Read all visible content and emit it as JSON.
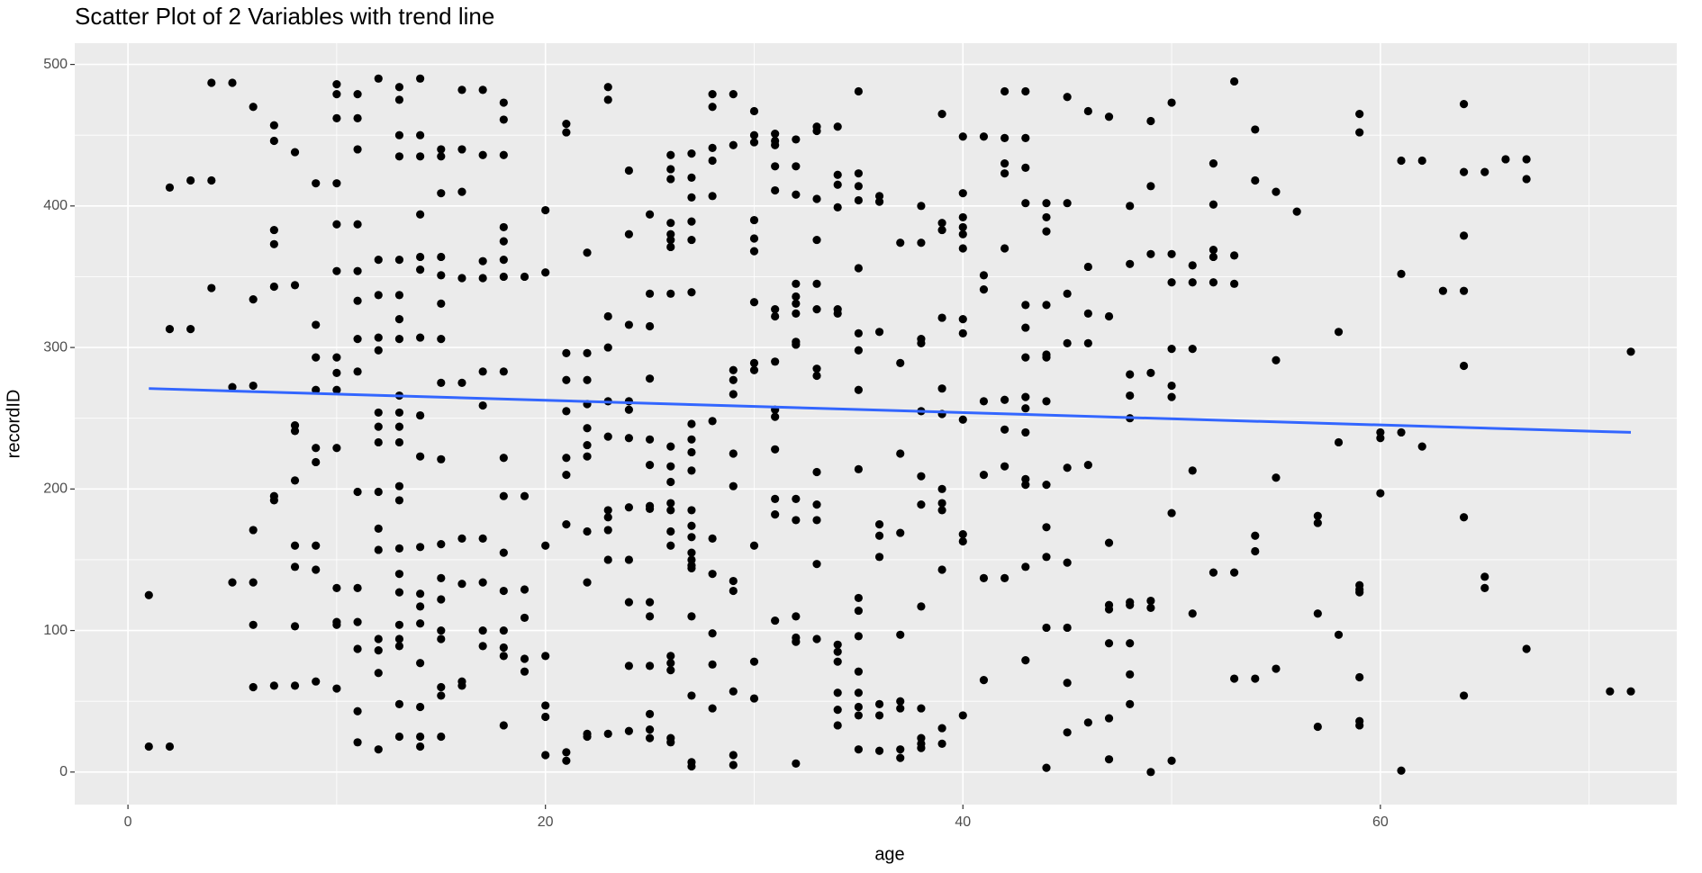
{
  "chart_data": {
    "type": "scatter",
    "title": "Scatter Plot of 2 Variables with trend line",
    "xlabel": "age",
    "ylabel": "recordID",
    "color": "#000000",
    "xlim": [
      -2.55,
      74.2
    ],
    "xticks": [
      0,
      20,
      40,
      60
    ],
    "xminorticks": [
      10,
      30,
      50,
      70
    ],
    "ylim": [
      -23,
      515
    ],
    "yticks": [
      0,
      100,
      200,
      300,
      400,
      500
    ],
    "yminorticks": [
      50,
      150,
      250,
      350,
      450
    ],
    "grid": true,
    "trend": {
      "x": [
        1,
        72
      ],
      "values": [
        271,
        240
      ],
      "color": "#3366ff"
    },
    "x": [
      1,
      1,
      2,
      2,
      2,
      3,
      3,
      4,
      4,
      4,
      5,
      5,
      5,
      6,
      6,
      6,
      6,
      6,
      6,
      6,
      7,
      7,
      7,
      7,
      7,
      7,
      7,
      7,
      8,
      8,
      8,
      8,
      8,
      8,
      8,
      8,
      8,
      9,
      9,
      9,
      9,
      9,
      9,
      9,
      9,
      9,
      10,
      10,
      10,
      10,
      10,
      10,
      10,
      10,
      10,
      10,
      10,
      10,
      10,
      10,
      11,
      11,
      11,
      11,
      11,
      11,
      11,
      11,
      11,
      11,
      11,
      11,
      11,
      11,
      12,
      12,
      12,
      12,
      12,
      12,
      12,
      12,
      12,
      12,
      12,
      12,
      12,
      12,
      12,
      13,
      13,
      13,
      13,
      13,
      13,
      13,
      13,
      13,
      13,
      13,
      13,
      13,
      13,
      13,
      13,
      13,
      13,
      13,
      13,
      13,
      13,
      14,
      14,
      14,
      14,
      14,
      14,
      14,
      14,
      14,
      14,
      14,
      14,
      14,
      14,
      14,
      14,
      14,
      15,
      15,
      15,
      15,
      15,
      15,
      15,
      15,
      15,
      15,
      15,
      15,
      15,
      15,
      15,
      15,
      15,
      16,
      16,
      16,
      16,
      16,
      16,
      16,
      16,
      16,
      17,
      17,
      17,
      17,
      17,
      17,
      17,
      17,
      17,
      17,
      18,
      18,
      18,
      18,
      18,
      18,
      18,
      18,
      18,
      18,
      18,
      18,
      18,
      18,
      18,
      18,
      19,
      19,
      19,
      19,
      19,
      19,
      20,
      20,
      20,
      20,
      20,
      20,
      20,
      21,
      21,
      21,
      21,
      21,
      21,
      21,
      21,
      21,
      21,
      22,
      22,
      22,
      22,
      22,
      22,
      22,
      22,
      22,
      22,
      22,
      23,
      23,
      23,
      23,
      23,
      23,
      23,
      23,
      23,
      23,
      23,
      24,
      24,
      24,
      24,
      24,
      24,
      24,
      24,
      24,
      24,
      24,
      25,
      25,
      25,
      25,
      25,
      25,
      25,
      25,
      25,
      25,
      25,
      25,
      25,
      25,
      26,
      26,
      26,
      26,
      26,
      26,
      26,
      26,
      26,
      26,
      26,
      26,
      26,
      26,
      26,
      26,
      26,
      26,
      26,
      26,
      27,
      27,
      27,
      27,
      27,
      27,
      27,
      27,
      27,
      27,
      27,
      27,
      27,
      27,
      27,
      27,
      27,
      27,
      27,
      27,
      27,
      28,
      28,
      28,
      28,
      28,
      28,
      28,
      28,
      28,
      28,
      28,
      29,
      29,
      29,
      29,
      29,
      29,
      29,
      29,
      29,
      29,
      29,
      29,
      30,
      30,
      30,
      30,
      30,
      30,
      30,
      30,
      30,
      30,
      30,
      30,
      31,
      31,
      31,
      31,
      31,
      31,
      31,
      31,
      31,
      31,
      31,
      31,
      31,
      31,
      32,
      32,
      32,
      32,
      32,
      32,
      32,
      32,
      32,
      32,
      32,
      32,
      32,
      32,
      32,
      33,
      33,
      33,
      33,
      33,
      33,
      33,
      33,
      33,
      33,
      33,
      33,
      33,
      34,
      34,
      34,
      34,
      34,
      34,
      34,
      34,
      34,
      34,
      34,
      34,
      35,
      35,
      35,
      35,
      35,
      35,
      35,
      35,
      35,
      35,
      35,
      35,
      35,
      35,
      35,
      35,
      35,
      36,
      36,
      36,
      36,
      36,
      36,
      36,
      36,
      36,
      37,
      37,
      37,
      37,
      37,
      37,
      37,
      37,
      37,
      38,
      38,
      38,
      38,
      38,
      38,
      38,
      38,
      38,
      38,
      38,
      38,
      39,
      39,
      39,
      39,
      39,
      39,
      39,
      39,
      39,
      39,
      39,
      39,
      40,
      40,
      40,
      40,
      40,
      40,
      40,
      40,
      40,
      40,
      40,
      40,
      41,
      41,
      41,
      41,
      41,
      41,
      41,
      42,
      42,
      42,
      42,
      42,
      42,
      42,
      42,
      42,
      43,
      43,
      43,
      43,
      43,
      43,
      43,
      43,
      43,
      43,
      43,
      43,
      43,
      43,
      44,
      44,
      44,
      44,
      44,
      44,
      44,
      44,
      44,
      44,
      44,
      44,
      45,
      45,
      45,
      45,
      45,
      45,
      45,
      45,
      45,
      46,
      46,
      46,
      46,
      46,
      46,
      47,
      47,
      47,
      47,
      47,
      47,
      47,
      47,
      48,
      48,
      48,
      48,
      48,
      48,
      48,
      48,
      48,
      48,
      49,
      49,
      49,
      49,
      49,
      49,
      49,
      50,
      50,
      50,
      50,
      50,
      50,
      50,
      50,
      51,
      51,
      51,
      51,
      51,
      52,
      52,
      52,
      52,
      52,
      52,
      53,
      53,
      53,
      53,
      53,
      54,
      54,
      54,
      54,
      54,
      55,
      55,
      55,
      55,
      56,
      57,
      57,
      57,
      57,
      58,
      58,
      58,
      59,
      59,
      59,
      59,
      59,
      59,
      59,
      59,
      60,
      60,
      60,
      61,
      61,
      61,
      61,
      62,
      62,
      63,
      64,
      64,
      64,
      64,
      64,
      64,
      64,
      65,
      65,
      65,
      66,
      67,
      67,
      67,
      71,
      72,
      72
    ],
    "values": [
      125,
      18,
      413,
      313,
      18,
      418,
      313,
      487,
      418,
      342,
      487,
      272,
      134,
      470,
      334,
      273,
      171,
      134,
      104,
      60,
      457,
      446,
      383,
      373,
      343,
      195,
      192,
      61,
      438,
      344,
      245,
      241,
      206,
      160,
      145,
      103,
      61,
      416,
      316,
      293,
      270,
      229,
      219,
      160,
      143,
      64,
      486,
      479,
      462,
      416,
      387,
      354,
      293,
      282,
      270,
      229,
      130,
      106,
      104,
      59,
      479,
      462,
      440,
      387,
      354,
      333,
      306,
      283,
      198,
      130,
      106,
      87,
      43,
      21,
      490,
      362,
      337,
      307,
      298,
      254,
      244,
      233,
      198,
      172,
      157,
      94,
      86,
      70,
      16,
      484,
      475,
      450,
      435,
      362,
      337,
      320,
      306,
      266,
      254,
      244,
      233,
      202,
      192,
      158,
      140,
      127,
      104,
      94,
      89,
      48,
      25,
      490,
      450,
      435,
      394,
      364,
      355,
      307,
      252,
      223,
      159,
      126,
      117,
      105,
      77,
      46,
      25,
      18,
      440,
      435,
      409,
      364,
      351,
      331,
      306,
      275,
      221,
      161,
      137,
      122,
      100,
      94,
      60,
      54,
      25,
      482,
      440,
      410,
      349,
      275,
      165,
      133,
      64,
      61,
      482,
      436,
      361,
      349,
      283,
      259,
      165,
      134,
      100,
      89,
      473,
      461,
      436,
      385,
      375,
      362,
      350,
      283,
      222,
      195,
      155,
      128,
      100,
      88,
      82,
      33,
      350,
      195,
      129,
      109,
      80,
      71,
      397,
      353,
      160,
      82,
      47,
      39,
      12,
      458,
      452,
      296,
      277,
      255,
      222,
      210,
      175,
      14,
      8,
      367,
      296,
      277,
      260,
      243,
      231,
      223,
      170,
      134,
      27,
      25,
      484,
      475,
      322,
      300,
      262,
      237,
      185,
      180,
      171,
      150,
      27,
      425,
      380,
      316,
      262,
      256,
      236,
      187,
      150,
      120,
      75,
      29,
      394,
      338,
      315,
      278,
      235,
      217,
      188,
      186,
      120,
      110,
      75,
      41,
      30,
      24,
      436,
      426,
      419,
      388,
      380,
      376,
      371,
      338,
      230,
      216,
      205,
      190,
      185,
      170,
      160,
      82,
      77,
      72,
      24,
      21,
      437,
      420,
      406,
      389,
      376,
      339,
      246,
      235,
      226,
      213,
      185,
      174,
      166,
      155,
      150,
      146,
      144,
      110,
      54,
      7,
      4,
      479,
      470,
      441,
      432,
      407,
      248,
      165,
      140,
      98,
      76,
      45,
      479,
      443,
      284,
      277,
      267,
      225,
      202,
      135,
      128,
      57,
      12,
      5,
      467,
      450,
      445,
      390,
      377,
      368,
      332,
      289,
      284,
      160,
      78,
      52,
      451,
      446,
      443,
      428,
      411,
      327,
      322,
      290,
      256,
      251,
      228,
      193,
      182,
      107,
      447,
      428,
      408,
      345,
      336,
      331,
      324,
      304,
      302,
      193,
      178,
      110,
      95,
      92,
      6,
      456,
      453,
      405,
      376,
      345,
      327,
      285,
      280,
      212,
      189,
      178,
      147,
      94,
      456,
      422,
      415,
      399,
      327,
      324,
      90,
      85,
      78,
      56,
      44,
      33,
      481,
      423,
      414,
      404,
      356,
      310,
      298,
      270,
      214,
      123,
      114,
      96,
      71,
      56,
      46,
      40,
      16,
      407,
      403,
      311,
      175,
      167,
      152,
      48,
      40,
      15,
      374,
      289,
      225,
      169,
      97,
      50,
      45,
      10,
      16,
      400,
      374,
      306,
      303,
      255,
      209,
      189,
      117,
      45,
      24,
      20,
      17,
      465,
      388,
      383,
      321,
      271,
      253,
      200,
      190,
      185,
      143,
      31,
      20,
      449,
      409,
      392,
      385,
      380,
      370,
      320,
      310,
      249,
      168,
      163,
      40,
      449,
      351,
      341,
      262,
      210,
      137,
      65,
      481,
      448,
      430,
      423,
      370,
      263,
      242,
      216,
      137,
      481,
      448,
      427,
      402,
      330,
      314,
      293,
      265,
      257,
      240,
      207,
      203,
      145,
      79,
      402,
      392,
      382,
      330,
      295,
      293,
      262,
      203,
      173,
      152,
      102,
      3,
      477,
      402,
      338,
      303,
      215,
      148,
      102,
      63,
      28,
      467,
      357,
      324,
      303,
      217,
      35,
      463,
      322,
      162,
      118,
      115,
      91,
      38,
      9,
      400,
      359,
      281,
      266,
      250,
      120,
      118,
      91,
      69,
      48,
      460,
      414,
      366,
      282,
      121,
      116,
      0,
      473,
      366,
      346,
      299,
      273,
      265,
      183,
      8,
      358,
      346,
      299,
      213,
      112,
      430,
      401,
      369,
      364,
      346,
      141,
      488,
      365,
      345,
      141,
      66,
      454,
      418,
      167,
      156,
      66,
      410,
      291,
      208,
      73,
      396,
      181,
      176,
      112,
      32,
      311,
      233,
      97,
      465,
      452,
      132,
      129,
      127,
      67,
      36,
      33,
      240,
      236,
      197,
      432,
      352,
      240,
      1,
      432,
      230,
      340,
      472,
      424,
      379,
      340,
      287,
      180,
      54,
      424,
      138,
      130,
      433,
      433,
      419,
      87,
      57,
      297,
      57
    ]
  }
}
